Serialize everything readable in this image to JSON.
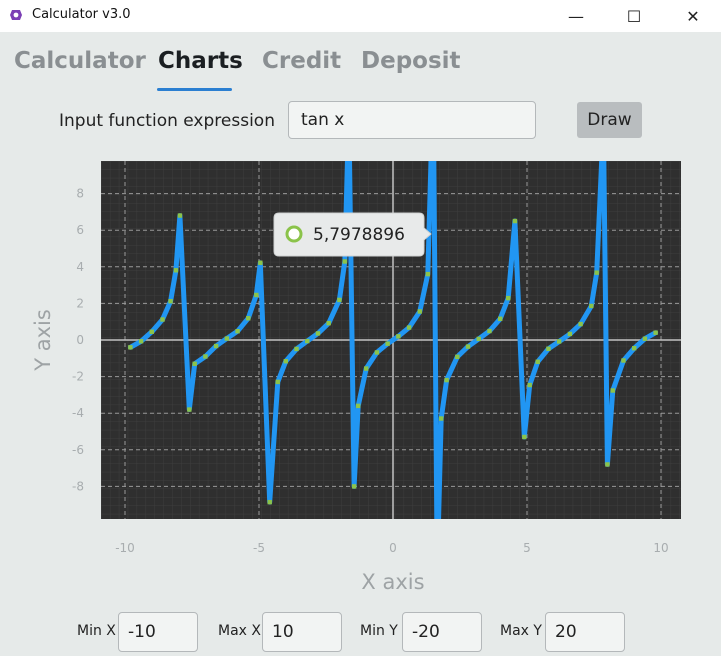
{
  "window": {
    "title": "Calculator v3.0",
    "icon": "app-logo-icon",
    "minimize": "—",
    "maximize": "☐",
    "close": "✕"
  },
  "tabs": [
    {
      "label": "Calculator",
      "active": false
    },
    {
      "label": "Charts",
      "active": true
    },
    {
      "label": "Credit",
      "active": false
    },
    {
      "label": "Deposit",
      "active": false
    }
  ],
  "expression": {
    "label": "Input function expression",
    "value": "tan x"
  },
  "draw_button": {
    "label": "Draw"
  },
  "tooltip": {
    "value": "5,7978896"
  },
  "range": {
    "min_x": {
      "label": "Min X",
      "value": "-10"
    },
    "max_x": {
      "label": "Max X",
      "value": "10"
    },
    "min_y": {
      "label": "Min Y",
      "value": "-20"
    },
    "max_y": {
      "label": "Max Y",
      "value": "20"
    }
  },
  "chart_data": {
    "type": "line",
    "function": "tan x",
    "xlabel": "X axis",
    "ylabel": "Y axis",
    "xlim": [
      -10,
      10
    ],
    "ylim": [
      -9.7,
      9.7
    ],
    "xticks": [
      -10,
      -5,
      0,
      5,
      10
    ],
    "yticks": [
      -8,
      -6,
      -4,
      -2,
      0,
      2,
      4,
      6,
      8
    ],
    "grid": true,
    "series": [
      {
        "line_color": "#2196f3",
        "marker_color": "#8bc34a",
        "x": [
          -9.8,
          -9.4,
          -9.0,
          -8.6,
          -8.3,
          -8.1,
          -7.95,
          -7.6,
          -7.4,
          -7.0,
          -6.6,
          -6.2,
          -5.8,
          -5.4,
          -5.1,
          -4.95,
          -4.6,
          -4.3,
          -4.0,
          -3.6,
          -3.2,
          -2.8,
          -2.4,
          -2.0,
          -1.8,
          -1.65,
          -1.45,
          -1.3,
          -1.0,
          -0.6,
          -0.2,
          0.2,
          0.6,
          1.0,
          1.3,
          1.5,
          1.65,
          1.8,
          2.0,
          2.4,
          2.8,
          3.2,
          3.6,
          4.0,
          4.3,
          4.55,
          4.9,
          5.1,
          5.4,
          5.8,
          6.2,
          6.6,
          7.0,
          7.4,
          7.6,
          7.85,
          8.0,
          8.2,
          8.6,
          9.0,
          9.4,
          9.8
        ],
        "y": [
          -0.4,
          -0.07,
          0.45,
          1.12,
          2.12,
          3.81,
          6.8,
          -3.8,
          -1.3,
          -0.9,
          -0.33,
          0.08,
          0.48,
          1.19,
          2.46,
          4.22,
          -8.86,
          -2.29,
          -1.16,
          -0.49,
          -0.06,
          0.36,
          0.92,
          2.19,
          4.29,
          12.6,
          -8.0,
          -3.6,
          -1.56,
          -0.68,
          -0.2,
          0.2,
          0.68,
          1.56,
          3.6,
          14.1,
          -12.6,
          -4.29,
          -2.19,
          -0.92,
          -0.36,
          0.06,
          0.49,
          1.16,
          2.29,
          6.5,
          -5.3,
          -2.46,
          -1.19,
          -0.48,
          -0.08,
          0.33,
          0.87,
          1.86,
          3.68,
          11.9,
          -6.8,
          -2.76,
          -1.12,
          -0.45,
          0.07,
          0.4
        ]
      }
    ]
  }
}
